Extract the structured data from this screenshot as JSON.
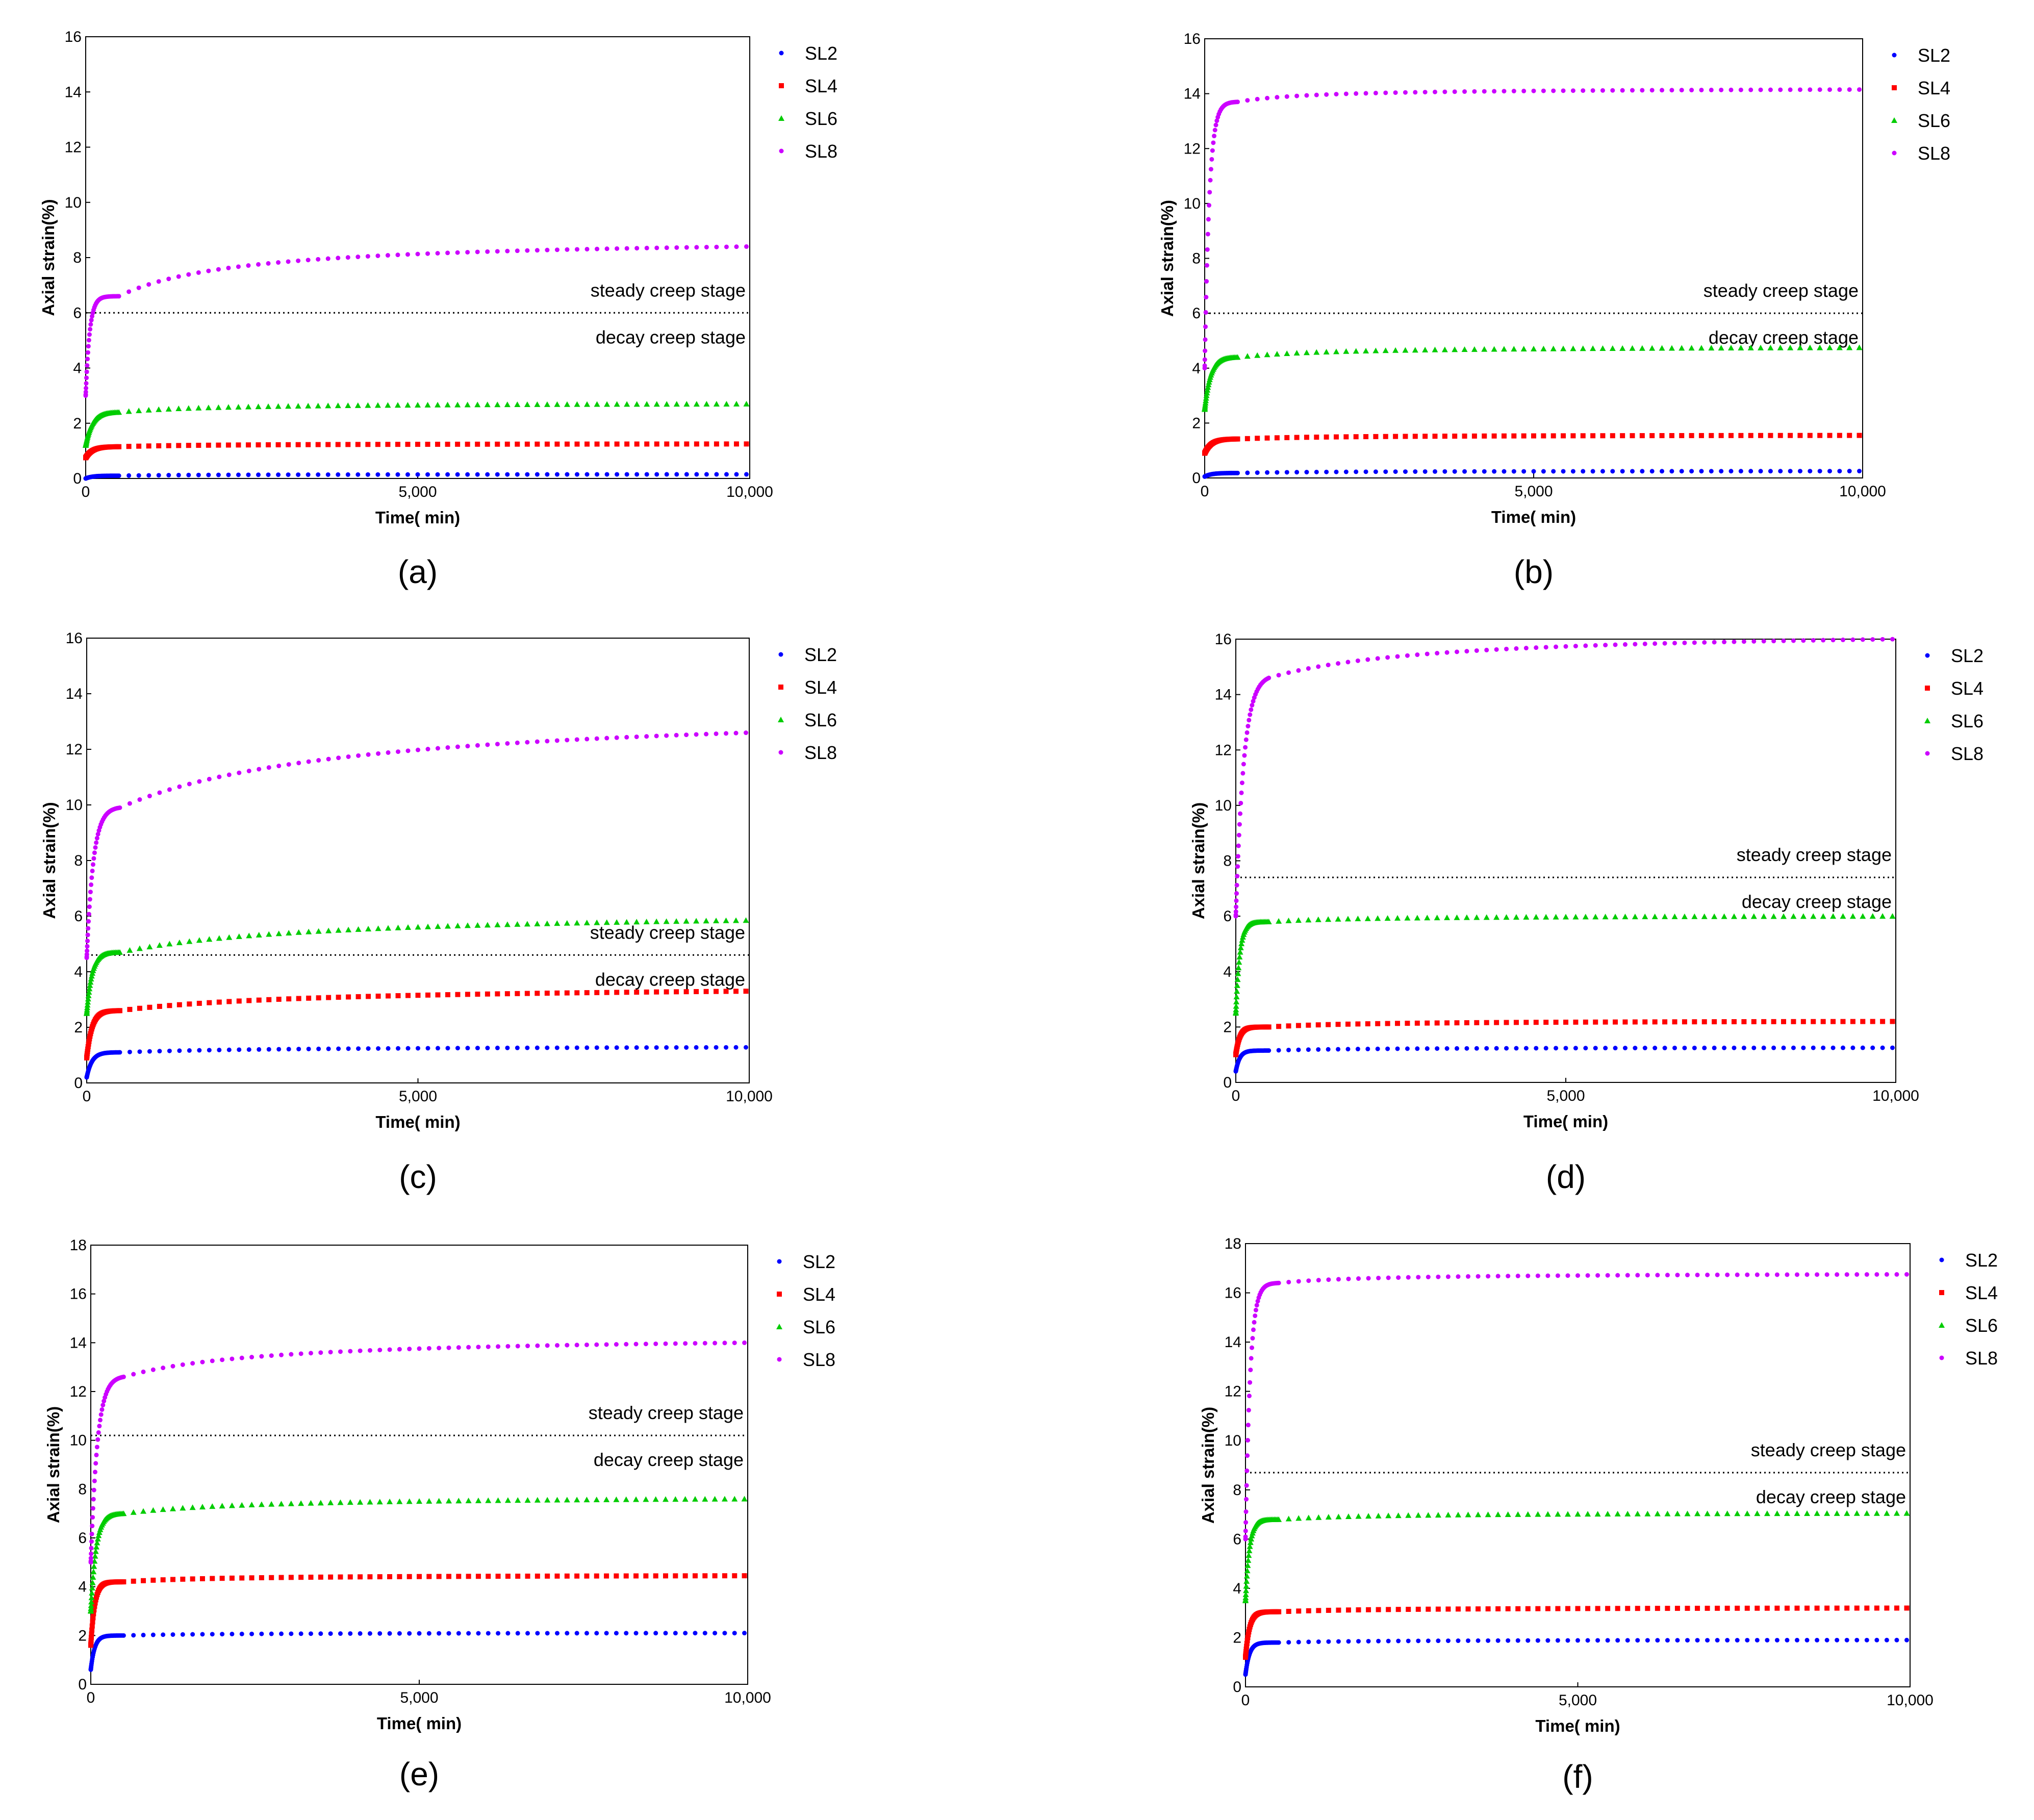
{
  "chart_data": [
    {
      "panel": "a",
      "panel_label": "(a)",
      "type": "scatter",
      "xlabel": "Time( min)",
      "ylabel": "Axial strain(%)",
      "xlim": [
        0,
        10000
      ],
      "ylim": [
        0,
        16
      ],
      "yticks": [
        0,
        2,
        4,
        6,
        8,
        10,
        12,
        14,
        16
      ],
      "xtick_labels": [
        "0",
        "5,000",
        "10,000"
      ],
      "legend": [
        "SL2",
        "SL4",
        "SL6",
        "SL8"
      ],
      "legend_position": "right",
      "series": [
        {
          "name": "SL2",
          "marker": "circle",
          "color": "#0000ff",
          "start": 0.0,
          "knee": 0.1,
          "final": 0.15,
          "k": 100,
          "b": 1500
        },
        {
          "name": "SL4",
          "marker": "square",
          "color": "#ff0000",
          "start": 0.75,
          "knee": 1.15,
          "final": 1.25,
          "k": 100,
          "b": 1500
        },
        {
          "name": "SL6",
          "marker": "triangle",
          "color": "#00cc00",
          "start": 1.2,
          "knee": 2.4,
          "final": 2.7,
          "k": 100,
          "b": 1500
        },
        {
          "name": "SL8",
          "marker": "circle",
          "color": "#cc00ff",
          "start": 3.0,
          "knee": 6.6,
          "final": 8.4,
          "k": 60,
          "b": 1800
        }
      ],
      "threshold_line": {
        "y": 6.0,
        "above_label": "steady creep stage",
        "below_label": "decay creep stage"
      }
    },
    {
      "panel": "b",
      "panel_label": "(b)",
      "type": "scatter",
      "xlabel": "Time( min)",
      "ylabel": "Axial strain(%)",
      "xlim": [
        0,
        10000
      ],
      "ylim": [
        0,
        16
      ],
      "yticks": [
        0,
        2,
        4,
        6,
        8,
        10,
        12,
        14,
        16
      ],
      "xtick_labels": [
        "0",
        "5,000",
        "10,000"
      ],
      "legend": [
        "SL2",
        "SL4",
        "SL6",
        "SL8"
      ],
      "legend_position": "right",
      "series": [
        {
          "name": "SL2",
          "marker": "circle",
          "color": "#0000ff",
          "start": 0.05,
          "knee": 0.18,
          "final": 0.25,
          "k": 100,
          "b": 1500
        },
        {
          "name": "SL4",
          "marker": "square",
          "color": "#ff0000",
          "start": 0.9,
          "knee": 1.42,
          "final": 1.55,
          "k": 100,
          "b": 1500
        },
        {
          "name": "SL6",
          "marker": "triangle",
          "color": "#00cc00",
          "start": 2.5,
          "knee": 4.4,
          "final": 4.75,
          "k": 90,
          "b": 1500
        },
        {
          "name": "SL8",
          "marker": "circle",
          "color": "#cc00ff",
          "start": 4.0,
          "knee": 13.7,
          "final": 14.15,
          "k": 70,
          "b": 1200
        }
      ],
      "threshold_line": {
        "y": 6.0,
        "above_label": "steady creep stage",
        "below_label": "decay creep stage"
      }
    },
    {
      "panel": "c",
      "panel_label": "(c)",
      "type": "scatter",
      "xlabel": "Time( min)",
      "ylabel": "Axial strain(%)",
      "xlim": [
        0,
        10000
      ],
      "ylim": [
        0,
        16
      ],
      "yticks": [
        0,
        2,
        4,
        6,
        8,
        10,
        12,
        14,
        16
      ],
      "xtick_labels": [
        "0",
        "5,000",
        "10,000"
      ],
      "legend": [
        "SL2",
        "SL4",
        "SL6",
        "SL8"
      ],
      "legend_position": "right",
      "series": [
        {
          "name": "SL2",
          "marker": "circle",
          "color": "#0000ff",
          "start": 0.2,
          "knee": 1.1,
          "final": 1.28,
          "k": 80,
          "b": 2500
        },
        {
          "name": "SL4",
          "marker": "square",
          "color": "#ff0000",
          "start": 0.9,
          "knee": 2.6,
          "final": 3.3,
          "k": 80,
          "b": 3000
        },
        {
          "name": "SL6",
          "marker": "triangle",
          "color": "#00cc00",
          "start": 2.5,
          "knee": 4.7,
          "final": 5.85,
          "k": 80,
          "b": 3000
        },
        {
          "name": "SL8",
          "marker": "circle",
          "color": "#cc00ff",
          "start": 4.5,
          "knee": 9.9,
          "final": 12.6,
          "k": 100,
          "b": 3500
        }
      ],
      "threshold_line": {
        "y": 4.6,
        "above_label": "steady creep stage",
        "below_label": "decay creep stage"
      }
    },
    {
      "panel": "d",
      "panel_label": "(d)",
      "type": "scatter",
      "xlabel": "Time( min)",
      "ylabel": "Axial strain(%)",
      "xlim": [
        0,
        10000
      ],
      "ylim": [
        0,
        16
      ],
      "yticks": [
        0,
        2,
        4,
        6,
        8,
        10,
        12,
        14,
        16
      ],
      "xtick_labels": [
        "0",
        "5,000",
        "10,000"
      ],
      "legend": [
        "SL2",
        "SL4",
        "SL6",
        "SL8"
      ],
      "legend_position": "right",
      "series": [
        {
          "name": "SL2",
          "marker": "circle",
          "color": "#0000ff",
          "start": 0.4,
          "knee": 1.15,
          "final": 1.25,
          "k": 60,
          "b": 1500
        },
        {
          "name": "SL4",
          "marker": "square",
          "color": "#ff0000",
          "start": 1.0,
          "knee": 2.0,
          "final": 2.2,
          "k": 60,
          "b": 1500
        },
        {
          "name": "SL6",
          "marker": "triangle",
          "color": "#00cc00",
          "start": 2.5,
          "knee": 5.8,
          "final": 6.0,
          "k": 60,
          "b": 1500
        },
        {
          "name": "SL8",
          "marker": "circle",
          "color": "#cc00ff",
          "start": 6.0,
          "knee": 14.6,
          "final": 16.0,
          "k": 120,
          "b": 2500
        }
      ],
      "threshold_line": {
        "y": 7.4,
        "above_label": "steady creep stage",
        "below_label": "decay creep stage"
      }
    },
    {
      "panel": "e",
      "panel_label": "(e)",
      "type": "scatter",
      "xlabel": "Time( min)",
      "ylabel": "Axial strain(%)",
      "xlim": [
        0,
        10000
      ],
      "ylim": [
        0,
        18
      ],
      "yticks": [
        0,
        2,
        4,
        6,
        8,
        10,
        12,
        14,
        16,
        18
      ],
      "xtick_labels": [
        "0",
        "5,000",
        "10,000"
      ],
      "legend": [
        "SL2",
        "SL4",
        "SL6",
        "SL8"
      ],
      "legend_position": "right",
      "series": [
        {
          "name": "SL2",
          "marker": "circle",
          "color": "#0000ff",
          "start": 0.6,
          "knee": 2.0,
          "final": 2.1,
          "k": 60,
          "b": 1500
        },
        {
          "name": "SL4",
          "marker": "square",
          "color": "#ff0000",
          "start": 1.6,
          "knee": 4.2,
          "final": 4.45,
          "k": 60,
          "b": 1500
        },
        {
          "name": "SL6",
          "marker": "triangle",
          "color": "#00cc00",
          "start": 3.0,
          "knee": 7.0,
          "final": 7.6,
          "k": 80,
          "b": 2000
        },
        {
          "name": "SL8",
          "marker": "circle",
          "color": "#cc00ff",
          "start": 5.0,
          "knee": 12.6,
          "final": 14.0,
          "k": 100,
          "b": 2200
        }
      ],
      "threshold_line": {
        "y": 10.2,
        "above_label": "steady creep stage",
        "below_label": "decay creep stage"
      }
    },
    {
      "panel": "f",
      "panel_label": "(f)",
      "type": "scatter",
      "xlabel": "Time( min)",
      "ylabel": "Axial strain(%)",
      "xlim": [
        0,
        10000
      ],
      "ylim": [
        0,
        18
      ],
      "yticks": [
        0,
        2,
        4,
        6,
        8,
        10,
        12,
        14,
        16,
        18
      ],
      "xtick_labels": [
        "0",
        "5,000",
        "10,000"
      ],
      "legend": [
        "SL2",
        "SL4",
        "SL6",
        "SL8"
      ],
      "legend_position": "right",
      "series": [
        {
          "name": "SL2",
          "marker": "circle",
          "color": "#0000ff",
          "start": 0.5,
          "knee": 1.8,
          "final": 1.9,
          "k": 60,
          "b": 1500
        },
        {
          "name": "SL4",
          "marker": "square",
          "color": "#ff0000",
          "start": 1.2,
          "knee": 3.05,
          "final": 3.2,
          "k": 60,
          "b": 1500
        },
        {
          "name": "SL6",
          "marker": "triangle",
          "color": "#00cc00",
          "start": 3.5,
          "knee": 6.8,
          "final": 7.05,
          "k": 60,
          "b": 1500
        },
        {
          "name": "SL8",
          "marker": "circle",
          "color": "#cc00ff",
          "start": 6.0,
          "knee": 16.4,
          "final": 16.75,
          "k": 70,
          "b": 1500
        }
      ],
      "threshold_line": {
        "y": 8.7,
        "above_label": "steady creep stage",
        "below_label": "decay creep stage"
      }
    }
  ]
}
